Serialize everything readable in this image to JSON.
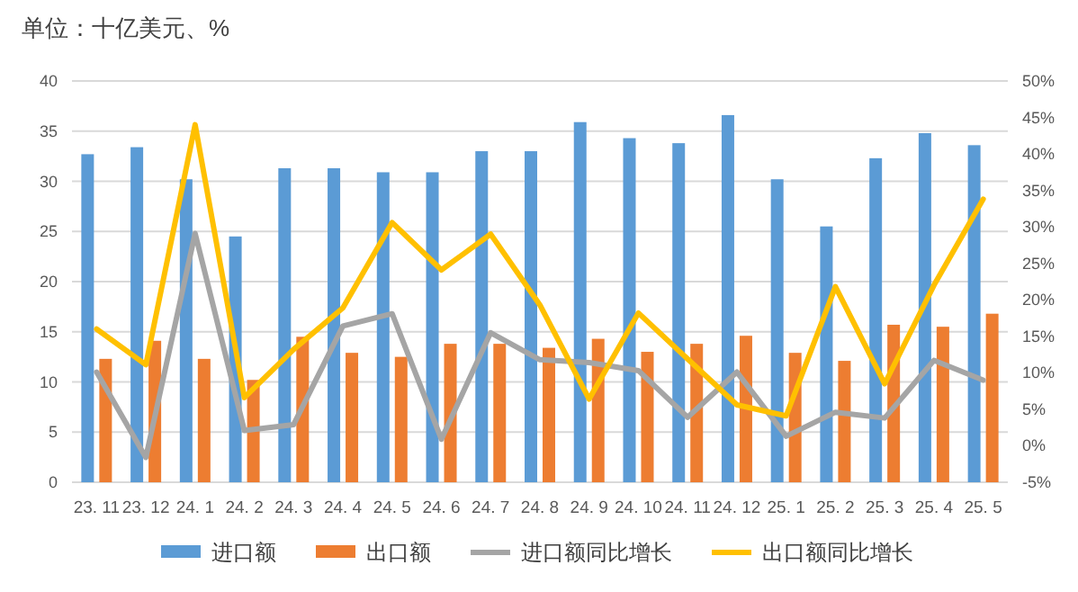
{
  "chart_data": {
    "type": "bar",
    "title": "单位：十亿美元、%",
    "categories": [
      "23. 11",
      "23. 12",
      "24. 1",
      "24. 2",
      "24. 3",
      "24. 4",
      "24. 5",
      "24. 6",
      "24. 7",
      "24. 8",
      "24. 9",
      "24. 10",
      "24. 11",
      "24. 12",
      "25. 1",
      "25. 2",
      "25. 3",
      "25. 4",
      "25. 5"
    ],
    "series": [
      {
        "name": "进口额",
        "color": "#5b9bd5",
        "values": [
          32.7,
          33.4,
          30.2,
          24.5,
          31.3,
          31.3,
          30.9,
          30.9,
          33.0,
          33.0,
          35.9,
          34.3,
          33.8,
          36.6,
          30.2,
          25.5,
          32.3,
          34.8,
          33.6
        ]
      },
      {
        "name": "出口额",
        "color": "#ed7d31",
        "values": [
          12.3,
          14.1,
          12.3,
          10.2,
          14.5,
          12.9,
          12.5,
          13.8,
          13.8,
          13.4,
          14.3,
          13.0,
          13.8,
          14.6,
          12.9,
          12.1,
          15.7,
          15.5,
          16.8
        ]
      },
      {
        "name": "进口额同比增长",
        "type": "line",
        "axis": "y2",
        "color": "#a5a5a5",
        "values": [
          10.1,
          -1.6,
          29.1,
          2.1,
          2.9,
          16.4,
          18.1,
          0.9,
          15.5,
          11.8,
          11.4,
          10.3,
          3.9,
          10.1,
          1.3,
          4.6,
          3.8,
          11.7,
          9.0
        ]
      },
      {
        "name": "出口额同比增长",
        "type": "line",
        "axis": "y2",
        "color": "#ffc000",
        "values": [
          16.0,
          11.1,
          44.0,
          6.6,
          13.2,
          18.9,
          30.6,
          24.1,
          29.0,
          19.3,
          6.4,
          18.2,
          11.9,
          5.6,
          4.1,
          21.8,
          8.5,
          22.0,
          33.8
        ]
      }
    ],
    "ylim": [
      0,
      40
    ],
    "yticks": [
      0,
      5,
      10,
      15,
      20,
      25,
      30,
      35,
      40
    ],
    "y2lim": [
      -5,
      50
    ],
    "y2ticks": [
      {
        "value": -5,
        "label": "-5%"
      },
      {
        "value": 0,
        "label": "0%"
      },
      {
        "value": 5,
        "label": "5%"
      },
      {
        "value": 10,
        "label": "10%"
      },
      {
        "value": 15,
        "label": "15%"
      },
      {
        "value": 20,
        "label": "20%"
      },
      {
        "value": 25,
        "label": "25%"
      },
      {
        "value": 30,
        "label": "30%"
      },
      {
        "value": 35,
        "label": "35%"
      },
      {
        "value": 40,
        "label": "40%"
      },
      {
        "value": 45,
        "label": "45%"
      },
      {
        "value": 50,
        "label": "50%"
      }
    ],
    "grid": "y",
    "legend": "bottom"
  }
}
